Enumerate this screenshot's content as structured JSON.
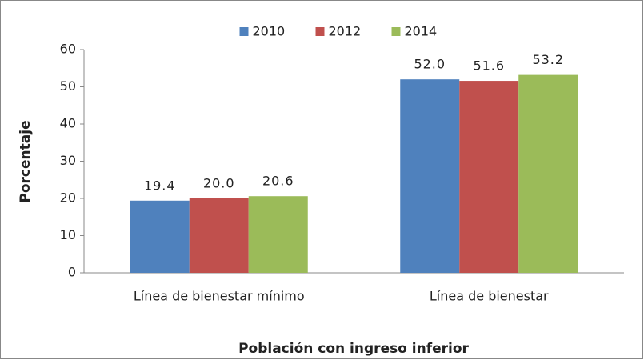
{
  "chart_data": {
    "type": "bar",
    "categories": [
      "Línea de bienestar mínimo",
      "Línea de bienestar"
    ],
    "series": [
      {
        "name": "2010",
        "color": "#4f81bd",
        "values": [
          19.4,
          52
        ],
        "value_labels": [
          "19.4",
          "52.0"
        ]
      },
      {
        "name": "2012",
        "color": "#c0504d",
        "values": [
          20,
          51.6
        ],
        "value_labels": [
          "20.0",
          "51.6"
        ]
      },
      {
        "name": "2014",
        "color": "#9bbb59",
        "values": [
          20.6,
          53.2
        ],
        "value_labels": [
          "20.6",
          "53.2"
        ]
      }
    ],
    "ylabel": "Porcentaje",
    "xlabel": "Población con ingreso inferior",
    "ylim": [
      0,
      60
    ],
    "yticks": [
      0,
      10,
      20,
      30,
      40,
      50,
      60
    ],
    "legend": "top",
    "grid": false
  }
}
